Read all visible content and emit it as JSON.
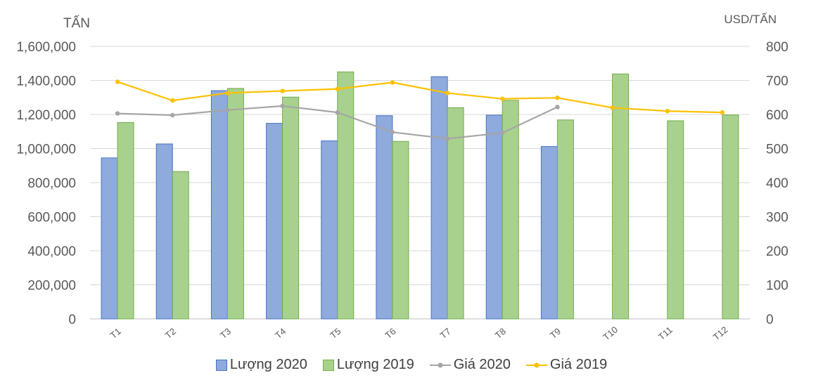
{
  "chart_data": {
    "type": "bar",
    "left_axis_unit": "TẤN",
    "right_axis_unit": "USD/TẤN",
    "categories": [
      "T1",
      "T2",
      "T3",
      "T4",
      "T5",
      "T6",
      "T7",
      "T8",
      "T9",
      "T10",
      "T11",
      "T12"
    ],
    "ylim": [
      0,
      1600000
    ],
    "y2lim": [
      0,
      800
    ],
    "yticks": [
      "0",
      "200,000",
      "400,000",
      "600,000",
      "800,000",
      "1,000,000",
      "1,200,000",
      "1,400,000",
      "1,600,000"
    ],
    "y2ticks": [
      "0",
      "100",
      "200",
      "300",
      "400",
      "500",
      "600",
      "700",
      "800"
    ],
    "grid": true,
    "legend_position": "bottom",
    "series": [
      {
        "name": "Lượng 2020",
        "type": "bar",
        "axis": "left",
        "color": "#8faadc",
        "values": [
          945000,
          1027000,
          1340000,
          1148000,
          1045000,
          1193000,
          1422000,
          1196000,
          1012000,
          null,
          null,
          null
        ]
      },
      {
        "name": "Lượng 2019",
        "type": "bar",
        "axis": "left",
        "color": "#a9d18e",
        "values": [
          1153000,
          865000,
          1353000,
          1302000,
          1450000,
          1042000,
          1240000,
          1283000,
          1168000,
          1438000,
          1163000,
          1197000
        ]
      },
      {
        "name": "Giá 2020",
        "type": "line",
        "axis": "right",
        "color": "#a5a5a5",
        "values": [
          603,
          598,
          613,
          625,
          606,
          548,
          529,
          546,
          622,
          null,
          null,
          null
        ]
      },
      {
        "name": "Giá 2019",
        "type": "line",
        "axis": "right",
        "color": "#ffc000",
        "values": [
          696,
          641,
          663,
          669,
          675,
          694,
          663,
          646,
          649,
          620,
          610,
          606
        ]
      }
    ]
  }
}
